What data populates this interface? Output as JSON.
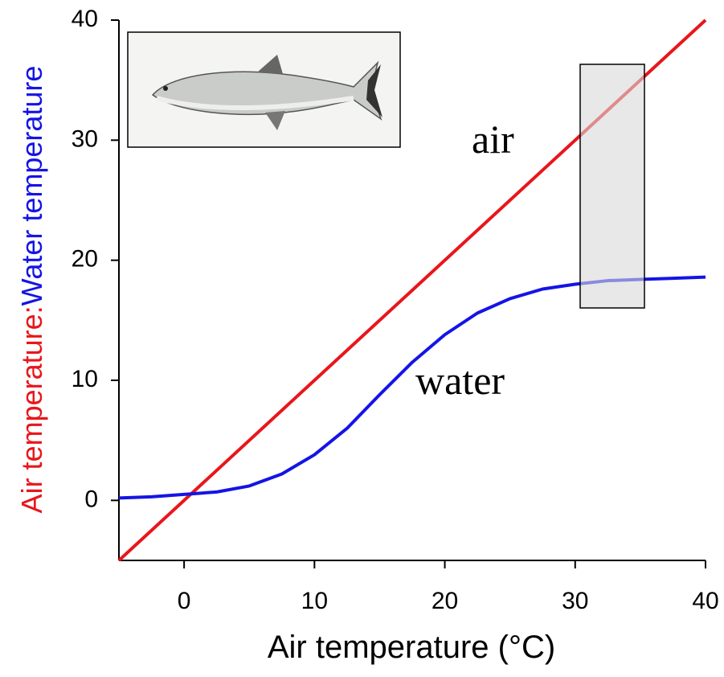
{
  "chart_data": {
    "type": "line",
    "xlabel": "Air temperature (°C)",
    "ylabel": [
      {
        "text": "Air temperature:",
        "color": "#e8161b"
      },
      {
        "text": "Water temperature",
        "color": "#1414e6"
      }
    ],
    "xlim": [
      -5,
      40
    ],
    "ylim": [
      -5,
      40
    ],
    "xticks": [
      0,
      10,
      20,
      30,
      40
    ],
    "yticks": [
      0,
      10,
      20,
      30,
      40
    ],
    "series": [
      {
        "name": "air",
        "color": "#e8161b",
        "x": [
          -5,
          40
        ],
        "values": [
          -5,
          40
        ]
      },
      {
        "name": "water",
        "color": "#1414e6",
        "x": [
          -5,
          -2.5,
          0,
          2.5,
          5,
          7.5,
          10,
          12.5,
          15,
          17.5,
          20,
          22.5,
          25,
          27.5,
          30,
          32.5,
          35,
          37.5,
          40
        ],
        "values": [
          0.2,
          0.3,
          0.5,
          0.7,
          1.2,
          2.2,
          3.8,
          6.0,
          8.8,
          11.5,
          13.8,
          15.6,
          16.8,
          17.6,
          18.0,
          18.3,
          18.4,
          18.5,
          18.6
        ]
      }
    ]
  }
}
